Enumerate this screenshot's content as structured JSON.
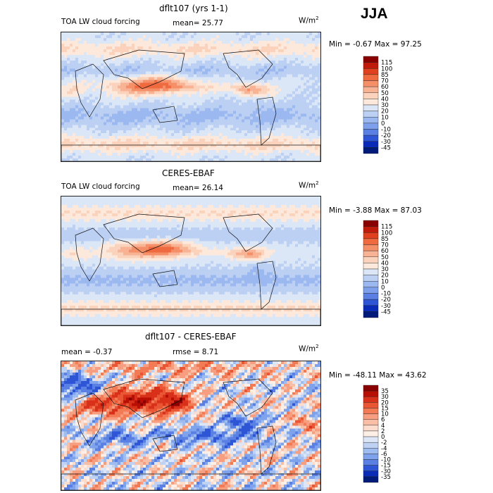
{
  "season": "JJA",
  "panels": [
    {
      "title": "dflt107 (yrs 1-1)",
      "left_label": "TOA LW cloud forcing",
      "mid_label": "mean=  25.77",
      "units": "W/m",
      "units_sup": "2",
      "minmax": "Min =  -0.67 Max =  97.25"
    },
    {
      "title": "CERES-EBAF",
      "left_label": "TOA LW cloud forcing",
      "mid_label": "mean=  26.14",
      "units": "W/m",
      "units_sup": "2",
      "minmax": "Min =  -3.88 Max =  87.03"
    },
    {
      "title": "dflt107 - CERES-EBAF",
      "left_label": "mean =  -0.37",
      "mid_label": "rmse =   8.71",
      "units": "W/m",
      "units_sup": "2",
      "minmax": "Min = -48.11 Max =  43.62"
    }
  ],
  "chart_data": [
    {
      "type": "heatmap",
      "title": "dflt107 (yrs 1-1)",
      "subtitle": "TOA LW cloud forcing",
      "mean": 25.77,
      "units": "W/m2",
      "min": -0.67,
      "max": 97.25,
      "colorbar_levels": [
        115,
        100,
        85,
        70,
        60,
        50,
        40,
        30,
        20,
        10,
        0,
        -10,
        -20,
        -30,
        -45
      ],
      "colorbar_colors": [
        "#8a0000",
        "#c01a0a",
        "#e0401d",
        "#ef6a3f",
        "#f58f67",
        "#f8b294",
        "#fbd3bd",
        "#fde9dc",
        "#dbe6f7",
        "#bcd0f4",
        "#9cb8f0",
        "#7d9fec",
        "#5a80e4",
        "#2d55d6",
        "#0a2ab8",
        "#001a7a"
      ]
    },
    {
      "type": "heatmap",
      "title": "CERES-EBAF",
      "subtitle": "TOA LW cloud forcing",
      "mean": 26.14,
      "units": "W/m2",
      "min": -3.88,
      "max": 87.03,
      "colorbar_levels": [
        115,
        100,
        85,
        70,
        60,
        50,
        40,
        30,
        20,
        10,
        0,
        -10,
        -20,
        -30,
        -45
      ],
      "colorbar_colors": [
        "#8a0000",
        "#c01a0a",
        "#e0401d",
        "#ef6a3f",
        "#f58f67",
        "#f8b294",
        "#fbd3bd",
        "#fde9dc",
        "#dbe6f7",
        "#bcd0f4",
        "#9cb8f0",
        "#7d9fec",
        "#5a80e4",
        "#2d55d6",
        "#0a2ab8",
        "#001a7a"
      ]
    },
    {
      "type": "heatmap",
      "title": "dflt107 - CERES-EBAF",
      "mean": -0.37,
      "rmse": 8.71,
      "units": "W/m2",
      "min": -48.11,
      "max": 43.62,
      "colorbar_levels": [
        35,
        30,
        20,
        15,
        10,
        6,
        4,
        2,
        0,
        -2,
        -4,
        -6,
        -10,
        -15,
        -30,
        -35
      ],
      "colorbar_colors": [
        "#8a0000",
        "#b80f05",
        "#d9301a",
        "#ea5534",
        "#f27a55",
        "#f69e7f",
        "#f9bfa6",
        "#fcdccd",
        "#fdeee6",
        "#dce6f7",
        "#bfd2f3",
        "#9fbcf0",
        "#7ea2eb",
        "#5a80e4",
        "#2d55d6",
        "#0a2ab8",
        "#001a7a"
      ]
    }
  ]
}
